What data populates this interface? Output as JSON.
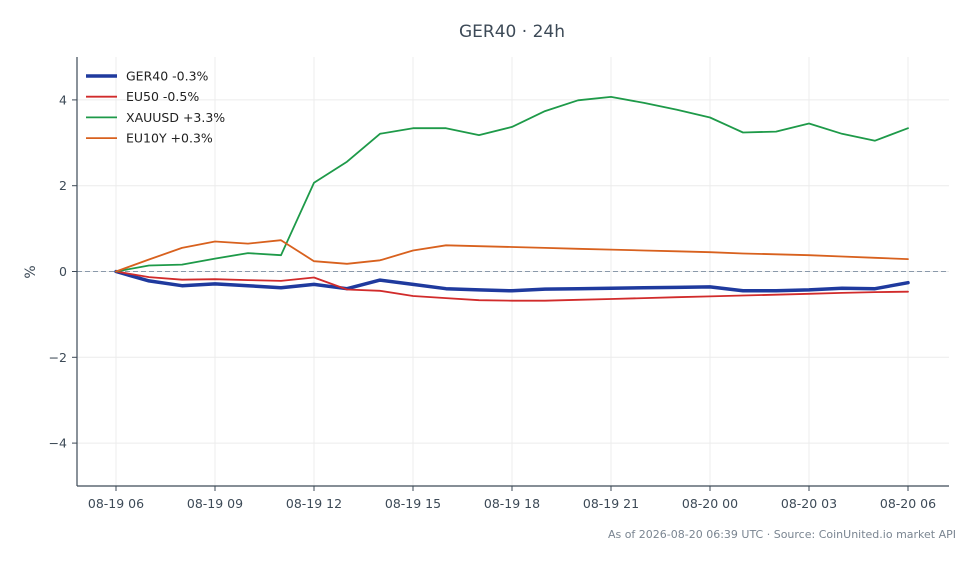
{
  "chart_data": {
    "type": "line",
    "title": "GER40 · 24h",
    "xlabel": "",
    "ylabel": "%",
    "ylim": [
      -5,
      5
    ],
    "yticks": [
      -4,
      -2,
      0,
      2,
      4
    ],
    "ytick_labels": [
      "−4",
      "−2",
      "0",
      "2",
      "4"
    ],
    "x": [
      "08-19 06",
      "08-19 07",
      "08-19 08",
      "08-19 09",
      "08-19 10",
      "08-19 11",
      "08-19 12",
      "08-19 13",
      "08-19 14",
      "08-19 15",
      "08-19 16",
      "08-19 17",
      "08-19 18",
      "08-19 19",
      "08-19 20",
      "08-19 21",
      "08-19 22",
      "08-19 23",
      "08-20 00",
      "08-20 01",
      "08-20 02",
      "08-20 03",
      "08-20 04",
      "08-20 05",
      "08-20 06"
    ],
    "xticks": [
      "08-19 06",
      "08-19 09",
      "08-19 12",
      "08-19 15",
      "08-19 18",
      "08-19 21",
      "08-20 00",
      "08-20 03",
      "08-20 06"
    ],
    "grid": true,
    "zero_line": true,
    "legend_position": "top-left",
    "series": [
      {
        "name": "GER40 -0.3%",
        "color": "#1f3a9e",
        "width": 3.5,
        "values": [
          0,
          -0.22,
          -0.33,
          -0.29,
          -0.33,
          -0.38,
          -0.3,
          -0.4,
          -0.2,
          -0.3,
          -0.4,
          -0.43,
          -0.45,
          -0.41,
          -0.4,
          -0.39,
          -0.38,
          -0.37,
          -0.36,
          -0.45,
          -0.45,
          -0.43,
          -0.39,
          -0.4,
          -0.26
        ]
      },
      {
        "name": "EU50 -0.5%",
        "color": "#d12b2b",
        "width": 1.8,
        "values": [
          0,
          -0.13,
          -0.19,
          -0.18,
          -0.2,
          -0.22,
          -0.14,
          -0.42,
          -0.45,
          -0.57,
          -0.62,
          -0.67,
          -0.68,
          -0.68,
          -0.66,
          -0.64,
          -0.62,
          -0.6,
          -0.58,
          -0.56,
          -0.54,
          -0.52,
          -0.5,
          -0.48,
          -0.47
        ]
      },
      {
        "name": "XAUUSD +3.3%",
        "color": "#1e9a49",
        "width": 1.8,
        "values": [
          0,
          0.14,
          0.16,
          0.3,
          0.43,
          0.38,
          2.07,
          2.56,
          3.21,
          3.34,
          3.34,
          3.18,
          3.37,
          3.74,
          3.99,
          4.07,
          3.93,
          3.77,
          3.59,
          3.24,
          3.26,
          3.45,
          3.21,
          3.05,
          3.34
        ]
      },
      {
        "name": "EU10Y +0.3%",
        "color": "#d8611e",
        "width": 1.8,
        "values": [
          0,
          0.28,
          0.55,
          0.7,
          0.65,
          0.73,
          0.24,
          0.18,
          0.26,
          0.49,
          0.61,
          0.59,
          0.57,
          0.55,
          0.53,
          0.51,
          0.49,
          0.47,
          0.45,
          0.42,
          0.4,
          0.38,
          0.35,
          0.32,
          0.29
        ]
      }
    ]
  },
  "footer": "As of 2026-08-20 06:39 UTC · Source: CoinUnited.io market API",
  "colors": {
    "axis": "#3d4a57",
    "grid": "#ececec",
    "zero_line": "#8a99aa"
  }
}
